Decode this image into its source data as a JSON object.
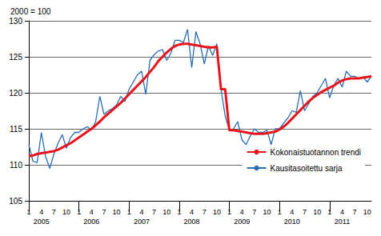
{
  "chart_data": {
    "type": "line",
    "title": "2000 = 100",
    "categories": [
      "1",
      null,
      null,
      "4\n2005",
      null,
      null,
      "7",
      null,
      null,
      "10",
      null,
      null,
      "1",
      null,
      null,
      "4\n2006",
      null,
      null,
      "7",
      null,
      null,
      "10",
      null,
      null,
      "1",
      null,
      null,
      "4\n2007",
      null,
      null,
      "7",
      null,
      null,
      "10",
      null,
      null,
      "1",
      null,
      null,
      "4\n2008",
      null,
      null,
      "7",
      null,
      null,
      "10",
      null,
      null,
      "1",
      null,
      null,
      "4\n2009",
      null,
      null,
      "7",
      null,
      null,
      "10",
      null,
      null,
      "1",
      null,
      null,
      "4\n2010",
      null,
      null,
      "7",
      null,
      null,
      "10",
      null,
      null,
      "1",
      null,
      null,
      "4\n2011",
      null,
      null,
      "7",
      null,
      null,
      "10",
      null
    ],
    "series": [
      {
        "name": "Kokonaistuotannon trendi",
        "color": "#e8141c",
        "values": [
          111.2,
          111.3,
          111.5,
          111.6,
          111.7,
          111.8,
          111.9,
          112.1,
          112.4,
          112.7,
          113.0,
          113.4,
          113.8,
          114.2,
          114.6,
          115.0,
          115.5,
          116.0,
          116.6,
          117.1,
          117.6,
          118.1,
          118.6,
          119.2,
          119.8,
          120.4,
          121.0,
          121.6,
          122.2,
          122.9,
          123.6,
          124.4,
          125.0,
          125.6,
          126.1,
          126.5,
          126.7,
          126.8,
          126.8,
          126.7,
          126.6,
          126.5,
          126.4,
          126.3,
          126.3,
          126.4,
          120.5,
          120.5,
          114.8,
          114.8,
          114.7,
          114.6,
          114.5,
          114.4,
          114.3,
          114.3,
          114.3,
          114.4,
          114.5,
          114.6,
          114.9,
          115.3,
          115.8,
          116.4,
          117.0,
          117.6,
          118.2,
          118.8,
          119.3,
          119.7,
          120.1,
          120.4,
          120.7,
          121.0,
          121.4,
          121.7,
          121.9,
          122.0,
          122.0,
          122.0,
          122.1,
          122.2,
          122.3
        ]
      },
      {
        "name": "Kausitasoitettu sarja",
        "color": "#2a6db5",
        "values": [
          112.8,
          110.5,
          110.3,
          114.5,
          111.2,
          109.5,
          111.5,
          113.0,
          114.2,
          112.3,
          113.8,
          114.5,
          114.5,
          115.0,
          115.3,
          114.8,
          116.0,
          119.5,
          117.0,
          117.5,
          117.8,
          118.3,
          119.5,
          118.8,
          120.5,
          121.5,
          122.5,
          123.0,
          119.8,
          124.5,
          125.3,
          125.8,
          126.0,
          124.5,
          125.5,
          127.3,
          127.3,
          127.0,
          128.8,
          123.5,
          128.5,
          126.8,
          124.0,
          126.5,
          125.2,
          126.8,
          120.5,
          116.8,
          114.8,
          115.0,
          116.0,
          113.5,
          112.8,
          114.0,
          115.0,
          114.5,
          114.5,
          114.8,
          112.8,
          115.0,
          115.0,
          115.8,
          116.5,
          117.5,
          117.3,
          120.3,
          117.5,
          118.5,
          119.5,
          120.0,
          121.0,
          122.0,
          119.3,
          121.0,
          122.0,
          120.8,
          123.0,
          122.3,
          122.3,
          122.0,
          122.2,
          121.5,
          122.3
        ]
      }
    ],
    "ylim": [
      105,
      130
    ],
    "yticks": [
      105,
      110,
      115,
      120,
      125,
      130
    ],
    "grid": true,
    "legend": "lower right"
  }
}
